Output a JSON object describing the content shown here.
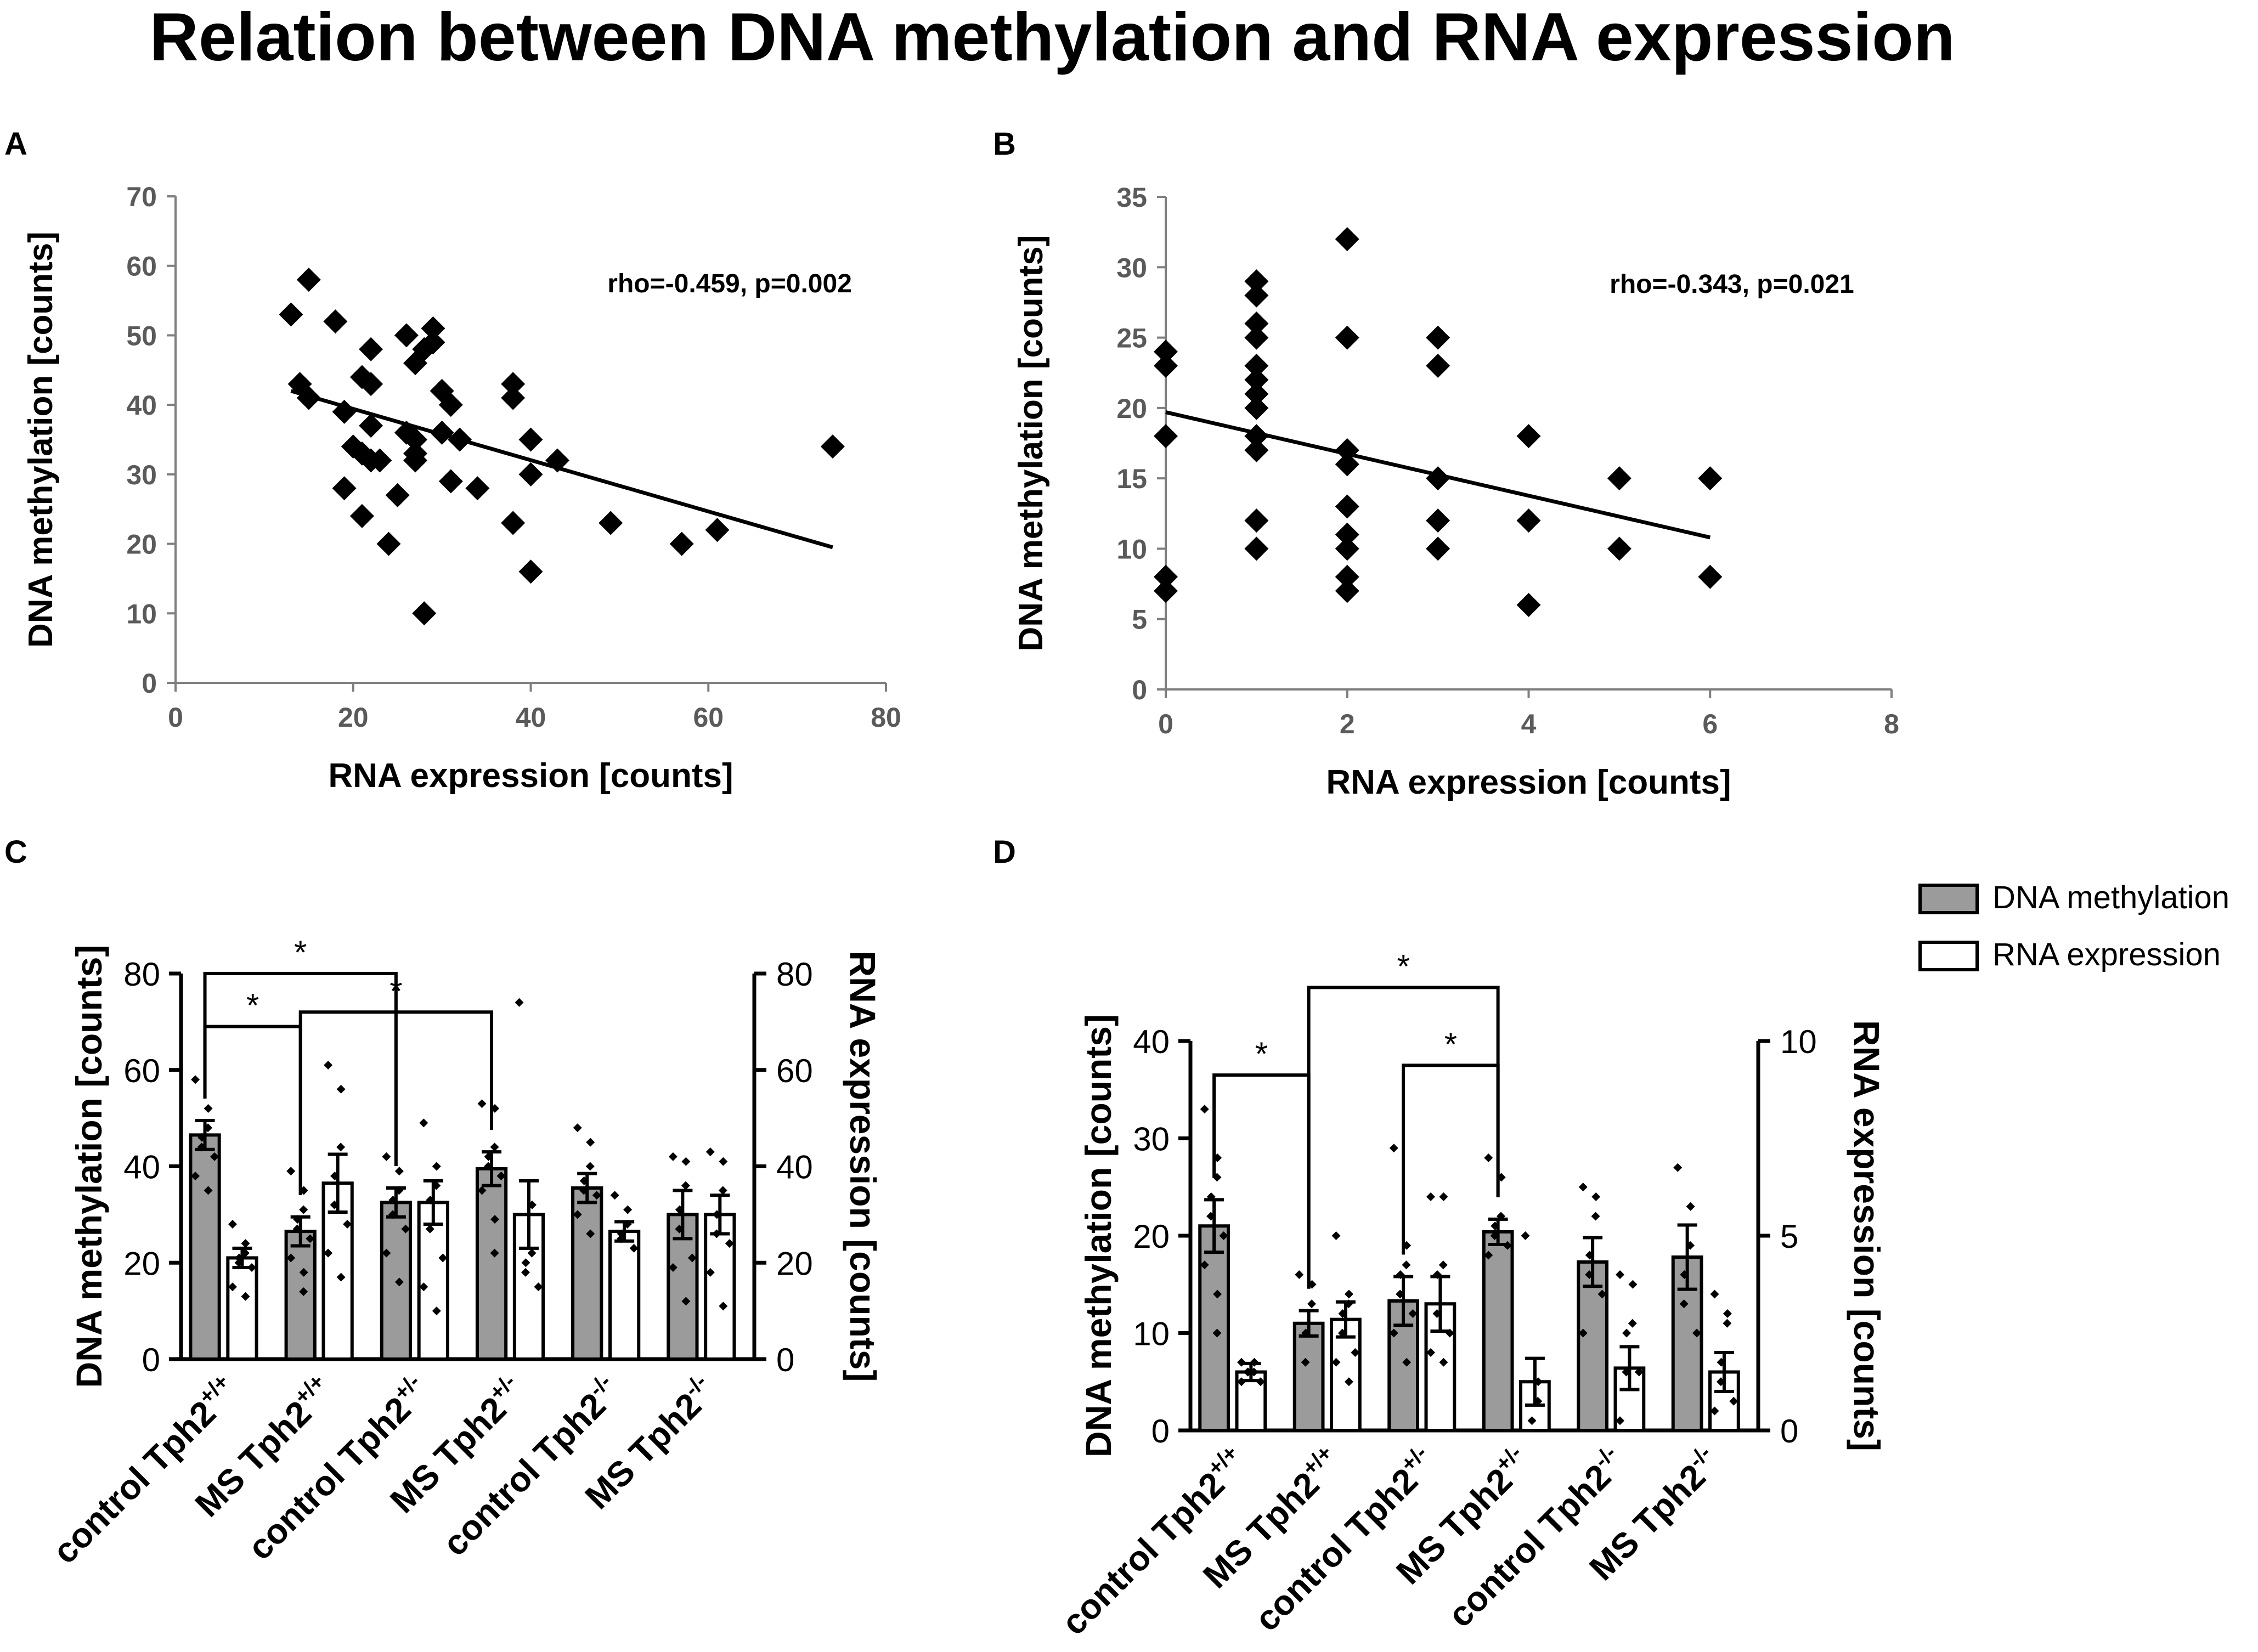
{
  "figure_title": "Relation between DNA methylation and RNA expression",
  "colors": {
    "dna_fill": "#9b9b9b",
    "rna_fill": "#ffffff",
    "ink": "#000000",
    "axis_gray": "#7f7f7f",
    "tick_text_gray": "#5a5a5a"
  },
  "legend": {
    "items": [
      "DNA methylation",
      "RNA expression"
    ]
  },
  "chart_data": [
    {
      "id": "A",
      "panel_label": "A",
      "type": "scatter",
      "xlabel": "RNA expression [counts]",
      "ylabel": "DNA methylation [counts]",
      "xlim": [
        0,
        80
      ],
      "ylim": [
        0,
        70
      ],
      "xticks": [
        0,
        20,
        40,
        60,
        80
      ],
      "yticks": [
        0,
        10,
        20,
        30,
        40,
        50,
        60,
        70
      ],
      "annotation": "rho=-0.459, p=0.002",
      "fit_line": {
        "x": [
          13,
          74
        ],
        "y": [
          42,
          19.5
        ]
      },
      "points": [
        [
          13,
          53
        ],
        [
          14,
          43
        ],
        [
          15,
          58
        ],
        [
          15,
          41
        ],
        [
          18,
          52
        ],
        [
          19,
          39
        ],
        [
          19,
          28
        ],
        [
          20,
          34
        ],
        [
          21,
          44
        ],
        [
          21,
          24
        ],
        [
          21,
          33
        ],
        [
          22,
          43
        ],
        [
          22,
          48
        ],
        [
          22,
          37
        ],
        [
          22,
          32
        ],
        [
          23,
          32
        ],
        [
          24,
          20
        ],
        [
          25,
          27
        ],
        [
          26,
          36
        ],
        [
          26,
          50
        ],
        [
          27,
          33
        ],
        [
          27,
          46
        ],
        [
          27,
          32
        ],
        [
          27,
          35
        ],
        [
          28,
          10
        ],
        [
          28,
          48
        ],
        [
          29,
          49
        ],
        [
          29,
          51
        ],
        [
          30,
          42
        ],
        [
          30,
          36
        ],
        [
          31,
          40
        ],
        [
          31,
          29
        ],
        [
          32,
          35
        ],
        [
          34,
          28
        ],
        [
          38,
          43
        ],
        [
          38,
          41
        ],
        [
          38,
          23
        ],
        [
          40,
          16
        ],
        [
          40,
          35
        ],
        [
          40,
          30
        ],
        [
          43,
          32
        ],
        [
          49,
          23
        ],
        [
          57,
          20
        ],
        [
          61,
          22
        ],
        [
          74,
          34
        ]
      ]
    },
    {
      "id": "B",
      "panel_label": "B",
      "type": "scatter",
      "xlabel": "RNA expression [counts]",
      "ylabel": "DNA methylation [counts]",
      "xlim": [
        0,
        8
      ],
      "ylim": [
        0,
        35
      ],
      "xticks": [
        0,
        2,
        4,
        6,
        8
      ],
      "yticks": [
        0,
        5,
        10,
        15,
        20,
        25,
        30,
        35
      ],
      "annotation": "rho=-0.343, p=0.021",
      "fit_line": {
        "x": [
          0,
          6
        ],
        "y": [
          19.7,
          10.8
        ]
      },
      "points": [
        [
          0,
          24
        ],
        [
          0,
          23
        ],
        [
          0,
          18
        ],
        [
          0,
          8
        ],
        [
          0,
          7
        ],
        [
          1,
          29
        ],
        [
          1,
          28
        ],
        [
          1,
          26
        ],
        [
          1,
          25
        ],
        [
          1,
          23
        ],
        [
          1,
          22
        ],
        [
          1,
          21
        ],
        [
          1,
          20
        ],
        [
          1,
          18
        ],
        [
          1,
          17
        ],
        [
          1,
          12
        ],
        [
          1,
          10
        ],
        [
          2,
          32
        ],
        [
          2,
          25
        ],
        [
          2,
          17
        ],
        [
          2,
          16
        ],
        [
          2,
          13
        ],
        [
          2,
          11
        ],
        [
          2,
          10
        ],
        [
          2,
          8
        ],
        [
          2,
          7
        ],
        [
          3,
          25
        ],
        [
          3,
          23
        ],
        [
          3,
          15
        ],
        [
          3,
          12
        ],
        [
          3,
          10
        ],
        [
          4,
          18
        ],
        [
          4,
          12
        ],
        [
          4,
          6
        ],
        [
          5,
          15
        ],
        [
          5,
          10
        ],
        [
          6,
          15
        ],
        [
          6,
          8
        ]
      ]
    },
    {
      "id": "C",
      "panel_label": "C",
      "type": "bar",
      "ylabel": "DNA methylation [counts]",
      "ylabel_right": "RNA expression [counts]",
      "ylim": [
        0,
        80
      ],
      "ylim_right": [
        0,
        80
      ],
      "yticks": [
        0,
        20,
        40,
        60,
        80
      ],
      "yticks_right": [
        0,
        20,
        40,
        60,
        80
      ],
      "categories": [
        "control Tph2",
        "MS Tph2",
        "control Tph2",
        "MS Tph2",
        "control Tph2",
        "MS Tph2"
      ],
      "category_superscripts": [
        "+/+",
        "+/+",
        "+/-",
        "+/-",
        "-/-",
        "-/-"
      ],
      "series": [
        {
          "name": "DNA methylation",
          "values": [
            46.5,
            26.5,
            32.5,
            39.5,
            35.5,
            30.0
          ],
          "errors": [
            3,
            3,
            3,
            3.5,
            3,
            5
          ]
        },
        {
          "name": "RNA expression",
          "values": [
            21,
            36.5,
            32.5,
            30,
            26.5,
            30
          ],
          "errors": [
            2,
            6,
            4.5,
            7,
            2,
            4
          ]
        }
      ],
      "dots": [
        [
          [
            58,
            52,
            48,
            46,
            44,
            42,
            38,
            35
          ],
          [
            28,
            24,
            22,
            21,
            20,
            19,
            15,
            13
          ]
        ],
        [
          [
            39,
            35,
            31,
            29,
            27,
            25,
            21,
            18,
            14
          ],
          [
            61,
            56,
            44,
            38,
            32,
            28,
            22,
            17
          ]
        ],
        [
          [
            42,
            39,
            35,
            33,
            30,
            27,
            22,
            16
          ],
          [
            49,
            40,
            36,
            33,
            27,
            21,
            15,
            10
          ]
        ],
        [
          [
            53,
            52,
            44,
            42,
            40,
            38,
            35,
            29,
            22
          ],
          [
            74,
            32,
            22,
            20,
            18,
            15
          ]
        ],
        [
          [
            48,
            45,
            40,
            37,
            35,
            34,
            30,
            26
          ],
          [
            34,
            31,
            28,
            26,
            25,
            23
          ]
        ],
        [
          [
            42,
            41,
            36,
            31,
            27,
            21,
            19,
            12
          ],
          [
            43,
            41,
            35,
            30,
            26,
            24,
            18,
            11
          ]
        ]
      ],
      "significance": [
        {
          "from": 0,
          "to": 1,
          "label": "*",
          "level": 69
        },
        {
          "from": 0,
          "to": 2,
          "label": "*",
          "level": 80
        },
        {
          "from": 1,
          "to": 3,
          "label": "*",
          "level": 72
        }
      ]
    },
    {
      "id": "D",
      "panel_label": "D",
      "type": "bar",
      "ylabel": "DNA methylation [counts]",
      "ylabel_right": "RNA expression [counts]",
      "ylim": [
        0,
        40
      ],
      "ylim_right": [
        0,
        10
      ],
      "yticks": [
        0,
        10,
        20,
        30,
        40
      ],
      "yticks_right": [
        0,
        5,
        10
      ],
      "categories": [
        "control Tph2",
        "MS Tph2",
        "control Tph2",
        "MS Tph2",
        "control Tph2",
        "MS Tph2"
      ],
      "category_superscripts": [
        "+/+",
        "+/+",
        "+/-",
        "+/-",
        "-/-",
        "-/-"
      ],
      "series": [
        {
          "name": "DNA methylation",
          "values": [
            21,
            11,
            13.3,
            20.4,
            17.3,
            17.8
          ],
          "errors": [
            2.7,
            1.3,
            2.5,
            1.3,
            2.5,
            3.3
          ]
        },
        {
          "name": "RNA expression",
          "values": [
            1.5,
            2.85,
            3.25,
            1.25,
            1.6,
            1.5
          ],
          "errors": [
            0.22,
            0.45,
            0.7,
            0.6,
            0.55,
            0.5
          ]
        }
      ],
      "dots": [
        [
          [
            33,
            28,
            26,
            24,
            22,
            20,
            17,
            14,
            10
          ],
          [
            1.75,
            1.75,
            1.5,
            1.5,
            1.5,
            1.25,
            1.25
          ]
        ],
        [
          [
            16,
            15,
            13,
            10,
            7
          ],
          [
            5,
            3.5,
            3.25,
            3,
            2.5,
            2,
            1.75,
            1.25
          ]
        ],
        [
          [
            29,
            19,
            17,
            16,
            14,
            12,
            10,
            7
          ],
          [
            6,
            6,
            4.25,
            4,
            3,
            2.5,
            2,
            1.75
          ]
        ],
        [
          [
            28,
            26,
            22,
            21,
            20,
            19,
            18
          ],
          [
            5,
            1.25,
            0.75,
            0.25
          ]
        ],
        [
          [
            25,
            24,
            22,
            18,
            16,
            14,
            10
          ],
          [
            4,
            3.75,
            2.75,
            2.5,
            1.5,
            1.5,
            0.25
          ]
        ],
        [
          [
            27,
            23,
            19,
            16,
            13,
            10
          ],
          [
            3.5,
            3,
            2.75,
            1.75,
            1.25,
            0.75,
            0.5
          ]
        ]
      ],
      "significance": [
        {
          "from": 0,
          "to": 1,
          "label": "*",
          "level": 36.5
        },
        {
          "from": 1,
          "to": 3,
          "label": "*",
          "level": 45.5
        },
        {
          "from": 2,
          "to": 3,
          "label": "*",
          "level": 37.5
        }
      ]
    }
  ]
}
